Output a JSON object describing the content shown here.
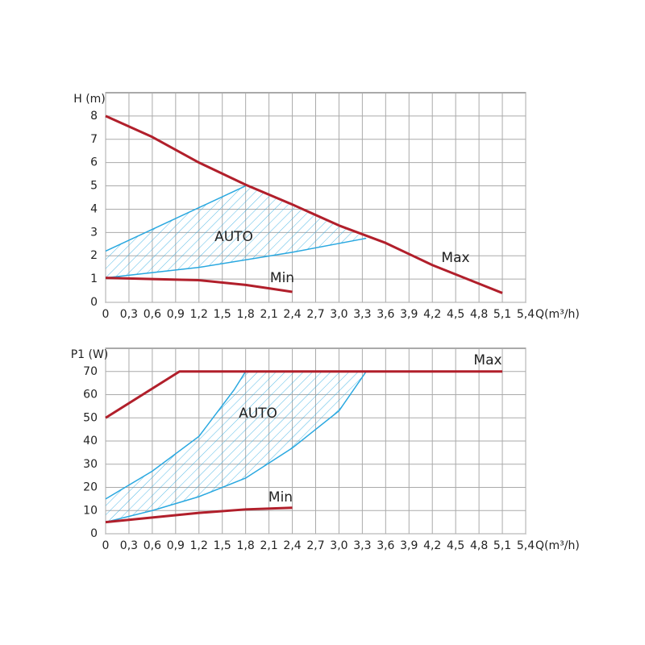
{
  "chart_data": [
    {
      "type": "line",
      "y_label": "H (m)",
      "x_label": "Q(m³/h)",
      "xlim": [
        0,
        5.4
      ],
      "ylim": [
        0,
        9
      ],
      "xticks": [
        0,
        {
          "value": 0.3,
          "label": "0,3"
        },
        {
          "value": 0.6,
          "label": "0,6"
        },
        {
          "value": 0.9,
          "label": "0,9"
        },
        {
          "value": 1.2,
          "label": "1,2"
        },
        {
          "value": 1.5,
          "label": "1,5"
        },
        {
          "value": 1.8,
          "label": "1,8"
        },
        {
          "value": 2.1,
          "label": "2,1"
        },
        {
          "value": 2.4,
          "label": "2,4"
        },
        {
          "value": 2.7,
          "label": "2,7"
        },
        {
          "value": 3.0,
          "label": "3,0"
        },
        {
          "value": 3.3,
          "label": "3,3"
        },
        {
          "value": 3.6,
          "label": "3,6"
        },
        {
          "value": 3.9,
          "label": "3,9"
        },
        {
          "value": 4.2,
          "label": "4,2"
        },
        {
          "value": 4.5,
          "label": "4,5"
        },
        {
          "value": 4.8,
          "label": "4,8"
        },
        {
          "value": 5.1,
          "label": "5,1"
        },
        {
          "value": 5.4,
          "label": "5,4"
        }
      ],
      "yticks": [
        0,
        1,
        2,
        3,
        4,
        5,
        6,
        7,
        8
      ],
      "grid": true,
      "series": [
        {
          "name": "Max",
          "color": "#b11f2b",
          "x": [
            0,
            0.6,
            1.2,
            1.8,
            2.4,
            3.0,
            3.6,
            4.2,
            4.8,
            5.1
          ],
          "values": [
            8,
            7.1,
            6.0,
            5.05,
            4.2,
            3.3,
            2.55,
            1.6,
            0.8,
            0.4
          ]
        },
        {
          "name": "Min",
          "color": "#b11f2b",
          "x": [
            0,
            0.6,
            1.2,
            1.8,
            2.1,
            2.4
          ],
          "values": [
            1.05,
            1.0,
            0.95,
            0.75,
            0.6,
            0.45
          ]
        }
      ],
      "region": {
        "name": "AUTO",
        "color": "#29a8e0",
        "upper": {
          "x": [
            0,
            1.8
          ],
          "values": [
            2.2,
            5.0
          ]
        },
        "lower": {
          "x": [
            0,
            1.2,
            2.4,
            3.35
          ],
          "values": [
            1.05,
            1.5,
            2.15,
            2.75
          ]
        }
      }
    },
    {
      "type": "line",
      "y_label": "P1 (W)",
      "x_label": "Q(m³/h)",
      "xlim": [
        0,
        5.4
      ],
      "ylim": [
        0,
        80
      ],
      "xticks": [
        0,
        {
          "value": 0.3,
          "label": "0,3"
        },
        {
          "value": 0.6,
          "label": "0,6"
        },
        {
          "value": 0.9,
          "label": "0,9"
        },
        {
          "value": 1.2,
          "label": "1,2"
        },
        {
          "value": 1.5,
          "label": "1,5"
        },
        {
          "value": 1.8,
          "label": "1,8"
        },
        {
          "value": 2.1,
          "label": "2,1"
        },
        {
          "value": 2.4,
          "label": "2,4"
        },
        {
          "value": 2.7,
          "label": "2,7"
        },
        {
          "value": 3.0,
          "label": "3,0"
        },
        {
          "value": 3.3,
          "label": "3,3"
        },
        {
          "value": 3.6,
          "label": "3,6"
        },
        {
          "value": 3.9,
          "label": "3,9"
        },
        {
          "value": 4.2,
          "label": "4,2"
        },
        {
          "value": 4.5,
          "label": "4,5"
        },
        {
          "value": 4.8,
          "label": "4,8"
        },
        {
          "value": 5.1,
          "label": "5,1"
        },
        {
          "value": 5.4,
          "label": "5,4"
        }
      ],
      "yticks": [
        0,
        10,
        20,
        30,
        40,
        50,
        60,
        70
      ],
      "grid": true,
      "series": [
        {
          "name": "Max",
          "color": "#b11f2b",
          "x": [
            0,
            0.95,
            5.1
          ],
          "values": [
            50,
            70,
            70
          ]
        },
        {
          "name": "Min",
          "color": "#b11f2b",
          "x": [
            0,
            0.6,
            1.2,
            1.8,
            2.4
          ],
          "values": [
            5,
            7,
            9,
            10.5,
            11.2
          ]
        }
      ],
      "region": {
        "name": "AUTO",
        "color": "#29a8e0",
        "upper": {
          "x": [
            0,
            0.6,
            1.2,
            1.65,
            1.8
          ],
          "values": [
            15,
            27,
            42,
            62,
            70
          ]
        },
        "lower": {
          "x": [
            0,
            0.6,
            1.2,
            1.8,
            2.4,
            3.0,
            3.35
          ],
          "values": [
            5,
            10,
            16,
            24,
            37,
            53,
            70
          ]
        }
      }
    }
  ]
}
